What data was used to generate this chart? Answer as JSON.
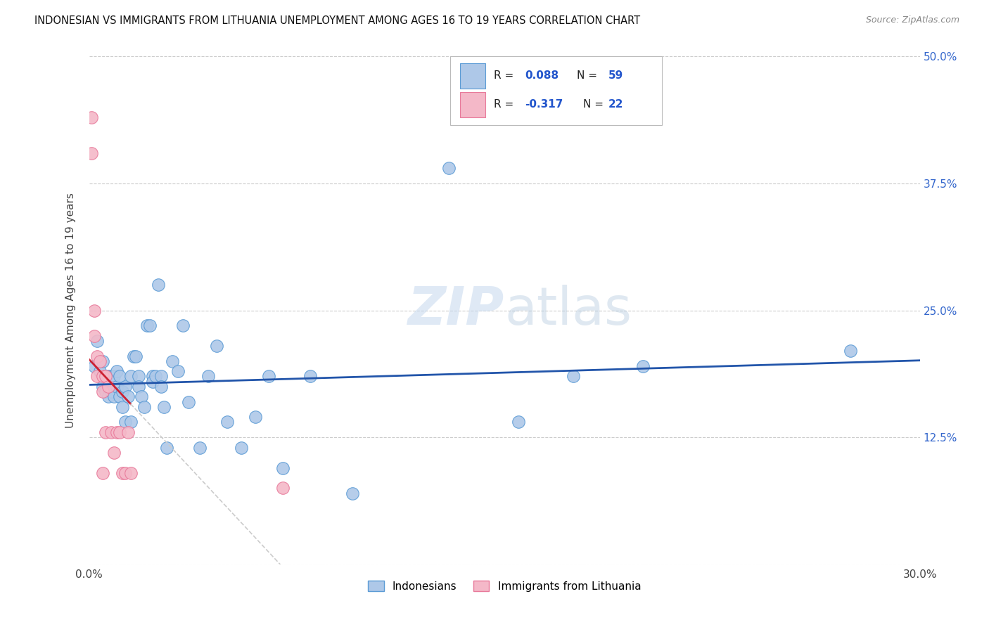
{
  "title": "INDONESIAN VS IMMIGRANTS FROM LITHUANIA UNEMPLOYMENT AMONG AGES 16 TO 19 YEARS CORRELATION CHART",
  "source": "Source: ZipAtlas.com",
  "xlim": [
    0.0,
    0.3
  ],
  "ylim": [
    0.0,
    0.5
  ],
  "watermark": "ZIPatlas",
  "indonesian_R": 0.088,
  "indonesian_N": 59,
  "lithuania_R": -0.317,
  "lithuania_N": 22,
  "legend_label_blue": "Indonesians",
  "legend_label_pink": "Immigrants from Lithuania",
  "blue_color": "#aec8e8",
  "blue_edge": "#5b9bd5",
  "pink_color": "#f4b8c8",
  "pink_edge": "#e8799a",
  "line_blue": "#2255aa",
  "line_pink": "#cc2233",
  "line_pink_dash": "#cccccc",
  "indonesian_x": [
    0.002,
    0.003,
    0.004,
    0.005,
    0.005,
    0.006,
    0.006,
    0.007,
    0.007,
    0.008,
    0.008,
    0.009,
    0.009,
    0.01,
    0.01,
    0.011,
    0.011,
    0.012,
    0.012,
    0.013,
    0.013,
    0.014,
    0.015,
    0.015,
    0.016,
    0.017,
    0.018,
    0.018,
    0.019,
    0.02,
    0.021,
    0.022,
    0.023,
    0.023,
    0.024,
    0.025,
    0.026,
    0.026,
    0.027,
    0.028,
    0.03,
    0.032,
    0.034,
    0.036,
    0.04,
    0.043,
    0.046,
    0.05,
    0.055,
    0.06,
    0.065,
    0.07,
    0.08,
    0.095,
    0.13,
    0.155,
    0.175,
    0.2,
    0.275
  ],
  "indonesian_y": [
    0.195,
    0.22,
    0.19,
    0.2,
    0.175,
    0.185,
    0.17,
    0.185,
    0.165,
    0.185,
    0.17,
    0.185,
    0.165,
    0.19,
    0.175,
    0.185,
    0.165,
    0.17,
    0.155,
    0.175,
    0.14,
    0.165,
    0.185,
    0.14,
    0.205,
    0.205,
    0.185,
    0.175,
    0.165,
    0.155,
    0.235,
    0.235,
    0.185,
    0.18,
    0.185,
    0.275,
    0.185,
    0.175,
    0.155,
    0.115,
    0.2,
    0.19,
    0.235,
    0.16,
    0.115,
    0.185,
    0.215,
    0.14,
    0.115,
    0.145,
    0.185,
    0.095,
    0.185,
    0.07,
    0.39,
    0.14,
    0.185,
    0.195,
    0.21
  ],
  "lithuania_x": [
    0.001,
    0.001,
    0.002,
    0.002,
    0.003,
    0.003,
    0.004,
    0.005,
    0.005,
    0.005,
    0.006,
    0.006,
    0.007,
    0.008,
    0.009,
    0.01,
    0.011,
    0.012,
    0.013,
    0.014,
    0.015,
    0.07
  ],
  "lithuania_y": [
    0.44,
    0.405,
    0.25,
    0.225,
    0.205,
    0.185,
    0.2,
    0.185,
    0.17,
    0.09,
    0.185,
    0.13,
    0.175,
    0.13,
    0.11,
    0.13,
    0.13,
    0.09,
    0.09,
    0.13,
    0.09,
    0.075
  ]
}
